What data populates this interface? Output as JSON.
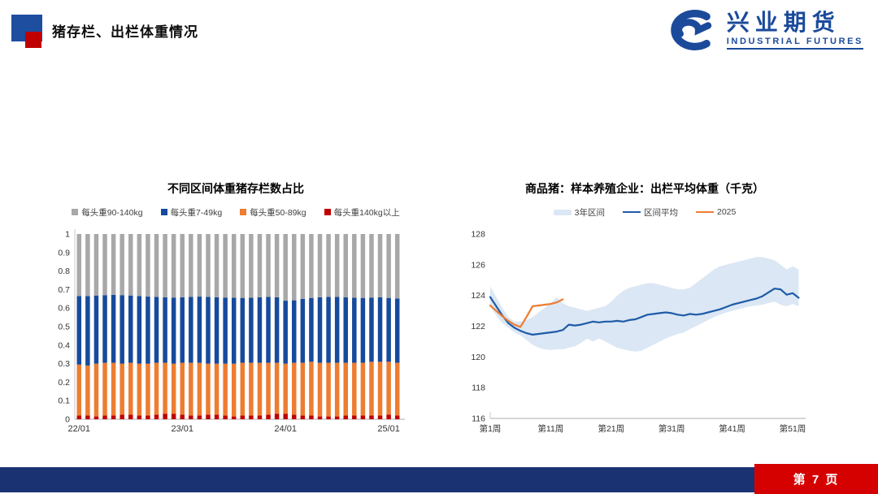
{
  "header": {
    "title": "猪存栏、出栏体重情况",
    "accent_blue": "#1D4EA0",
    "accent_red": "#C00000"
  },
  "logo": {
    "name_cn": "兴业期货",
    "name_en": "INDUSTRIAL FUTURES",
    "color": "#1B4A9B"
  },
  "footer": {
    "page_label": "第 7 页",
    "bar_color": "#1B3272",
    "page_box_color": "#D50000"
  },
  "chart_data": [
    {
      "type": "bar",
      "stacked": true,
      "title": "不同区间体重猪存栏数占比",
      "ylim": [
        0,
        1
      ],
      "yticks": [
        0,
        0.1,
        0.2,
        0.3,
        0.4,
        0.5,
        0.6,
        0.7,
        0.8,
        0.9,
        1
      ],
      "grid": false,
      "legend_position": "top",
      "legend": [
        {
          "label": "每头重90-140kg",
          "color": "#A8A8A8"
        },
        {
          "label": "每头重7-49kg",
          "color": "#164A9C"
        },
        {
          "label": "每头重50-89kg",
          "color": "#ED7D31"
        },
        {
          "label": "每头重140kg以上",
          "color": "#C00000"
        }
      ],
      "categories": [
        "22/01",
        "22/02",
        "22/03",
        "22/04",
        "22/05",
        "22/06",
        "22/07",
        "22/08",
        "22/09",
        "22/10",
        "22/11",
        "22/12",
        "23/01",
        "23/02",
        "23/03",
        "23/04",
        "23/05",
        "23/06",
        "23/07",
        "23/08",
        "23/09",
        "23/10",
        "23/11",
        "23/12",
        "24/01",
        "24/02",
        "24/03",
        "24/04",
        "24/05",
        "24/06",
        "24/07",
        "24/08",
        "24/09",
        "24/10",
        "24/11",
        "24/12",
        "25/01",
        "25/02"
      ],
      "x_axis_labels": [
        {
          "label": "22/01",
          "index": 0
        },
        {
          "label": "23/01",
          "index": 12
        },
        {
          "label": "24/01",
          "index": 24
        },
        {
          "label": "25/01",
          "index": 36
        }
      ],
      "series": [
        {
          "name": "每头重140kg以上",
          "color": "#C00000",
          "values": [
            0.02,
            0.02,
            0.015,
            0.02,
            0.02,
            0.025,
            0.025,
            0.02,
            0.02,
            0.025,
            0.03,
            0.03,
            0.025,
            0.02,
            0.02,
            0.025,
            0.025,
            0.02,
            0.015,
            0.02,
            0.02,
            0.02,
            0.025,
            0.03,
            0.03,
            0.025,
            0.02,
            0.02,
            0.015,
            0.015,
            0.015,
            0.02,
            0.02,
            0.02,
            0.02,
            0.02,
            0.025,
            0.02
          ]
        },
        {
          "name": "每头重50-89kg",
          "color": "#ED7D31",
          "values": [
            0.275,
            0.27,
            0.285,
            0.285,
            0.285,
            0.275,
            0.28,
            0.28,
            0.28,
            0.28,
            0.275,
            0.27,
            0.28,
            0.285,
            0.285,
            0.275,
            0.275,
            0.28,
            0.285,
            0.285,
            0.285,
            0.285,
            0.28,
            0.275,
            0.27,
            0.28,
            0.285,
            0.29,
            0.29,
            0.29,
            0.29,
            0.285,
            0.285,
            0.285,
            0.29,
            0.29,
            0.285,
            0.285
          ]
        },
        {
          "name": "每头重7-49kg",
          "color": "#164A9C",
          "values": [
            0.37,
            0.375,
            0.368,
            0.365,
            0.367,
            0.37,
            0.363,
            0.365,
            0.362,
            0.355,
            0.353,
            0.357,
            0.353,
            0.355,
            0.357,
            0.36,
            0.358,
            0.357,
            0.356,
            0.35,
            0.351,
            0.353,
            0.355,
            0.353,
            0.34,
            0.337,
            0.345,
            0.345,
            0.353,
            0.355,
            0.355,
            0.353,
            0.351,
            0.35,
            0.347,
            0.348,
            0.345,
            0.347
          ]
        },
        {
          "name": "每头重90-140kg",
          "color": "#A8A8A8",
          "values": [
            0.335,
            0.335,
            0.332,
            0.33,
            0.328,
            0.33,
            0.332,
            0.335,
            0.338,
            0.34,
            0.342,
            0.343,
            0.342,
            0.34,
            0.338,
            0.34,
            0.342,
            0.343,
            0.344,
            0.345,
            0.344,
            0.342,
            0.34,
            0.342,
            0.36,
            0.358,
            0.35,
            0.345,
            0.342,
            0.34,
            0.34,
            0.342,
            0.344,
            0.345,
            0.343,
            0.342,
            0.345,
            0.348
          ]
        }
      ]
    },
    {
      "type": "line",
      "title": "商品猪：样本养殖企业：出栏平均体重（千克）",
      "ylim": [
        116,
        128
      ],
      "yticks": [
        116,
        118,
        120,
        122,
        124,
        126,
        128
      ],
      "grid": false,
      "legend_position": "top",
      "x_weeks": 52,
      "x_tick_labels": [
        {
          "label": "第1周",
          "week": 1
        },
        {
          "label": "第11周",
          "week": 11
        },
        {
          "label": "第21周",
          "week": 21
        },
        {
          "label": "第31周",
          "week": 31
        },
        {
          "label": "第41周",
          "week": 41
        },
        {
          "label": "第51周",
          "week": 51
        }
      ],
      "legend": [
        {
          "label": "3年区间",
          "type": "band",
          "color": "#DBE7F4"
        },
        {
          "label": "区间平均",
          "type": "line",
          "color": "#1F5BA8"
        },
        {
          "label": "2025",
          "type": "line",
          "color": "#ED7D31"
        }
      ],
      "band": {
        "name": "3年区间",
        "color": "#DBE7F4",
        "lower": [
          123.3,
          122.7,
          122.2,
          121.9,
          121.6,
          121.4,
          121.1,
          120.8,
          120.6,
          120.5,
          120.45,
          120.5,
          120.5,
          120.6,
          120.7,
          120.9,
          121.2,
          121.0,
          121.2,
          121.0,
          120.8,
          120.6,
          120.5,
          120.4,
          120.35,
          120.4,
          120.6,
          120.8,
          121.0,
          121.2,
          121.35,
          121.5,
          121.6,
          121.8,
          122.0,
          122.2,
          122.4,
          122.6,
          122.75,
          122.9,
          123.0,
          123.1,
          123.2,
          123.3,
          123.35,
          123.4,
          123.5,
          123.6,
          123.4,
          123.3,
          123.45,
          123.3
        ],
        "upper": [
          124.6,
          123.9,
          123.2,
          122.6,
          122.3,
          122.3,
          122.4,
          122.6,
          122.9,
          123.2,
          123.5,
          123.9,
          123.5,
          123.3,
          123.2,
          123.1,
          123.0,
          123.1,
          123.2,
          123.3,
          123.6,
          124.0,
          124.3,
          124.5,
          124.6,
          124.7,
          124.8,
          124.8,
          124.7,
          124.6,
          124.5,
          124.4,
          124.4,
          124.5,
          124.8,
          125.1,
          125.4,
          125.7,
          125.9,
          126.0,
          126.1,
          126.2,
          126.3,
          126.4,
          126.5,
          126.5,
          126.4,
          126.3,
          126.0,
          125.7,
          125.9,
          125.7
        ]
      },
      "series": [
        {
          "name": "区间平均",
          "color": "#1F5BA8",
          "start_week": 1,
          "values": [
            123.9,
            123.3,
            122.7,
            122.2,
            121.9,
            121.7,
            121.55,
            121.45,
            121.5,
            121.55,
            121.6,
            121.65,
            121.75,
            122.1,
            122.05,
            122.1,
            122.2,
            122.3,
            122.25,
            122.3,
            122.3,
            122.35,
            122.3,
            122.4,
            122.45,
            122.6,
            122.75,
            122.8,
            122.85,
            122.9,
            122.85,
            122.75,
            122.7,
            122.8,
            122.75,
            122.8,
            122.9,
            123.0,
            123.1,
            123.25,
            123.4,
            123.5,
            123.6,
            123.7,
            123.8,
            123.95,
            124.2,
            124.45,
            124.4,
            124.05,
            124.15,
            123.85
          ]
        },
        {
          "name": "2025",
          "color": "#ED7D31",
          "start_week": 1,
          "values": [
            123.35,
            123.0,
            122.65,
            122.35,
            122.1,
            121.95,
            122.6,
            123.3,
            123.35,
            123.4,
            123.45,
            123.55,
            123.75
          ]
        }
      ]
    }
  ]
}
